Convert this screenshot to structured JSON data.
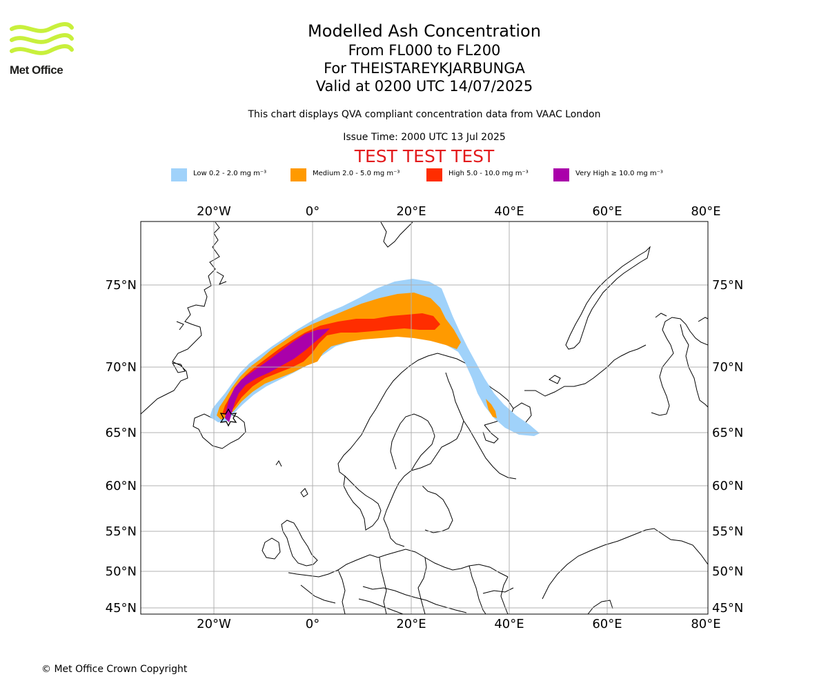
{
  "header": {
    "title": "Modelled Ash Concentration",
    "levels": "From FL000 to FL200",
    "volcano": "For THEISTAREYKJARBUNGA",
    "valid": "Valid at 0200 UTC 14/07/2025",
    "source_note": "This chart displays QVA compliant concentration data from VAAC London",
    "issue_time": "Issue Time: 2000 UTC 13 Jul 2025",
    "test_banner": "TEST TEST TEST"
  },
  "logo": {
    "text": "Met Office",
    "color": "#c8f03c"
  },
  "legend": [
    {
      "label": "Low 0.2 - 2.0 mg m⁻³",
      "color": "#a0d2fa"
    },
    {
      "label": "Medium 2.0 - 5.0 mg m⁻³",
      "color": "#ff9a00"
    },
    {
      "label": "High 5.0 - 10.0 mg m⁻³",
      "color": "#ff2d00"
    },
    {
      "label": "Very High ≥ 10.0 mg m⁻³",
      "color": "#aa00aa"
    }
  ],
  "map": {
    "longitude_labels": [
      "20°W",
      "0°",
      "20°E",
      "40°E",
      "60°E",
      "80°E"
    ],
    "latitude_labels": [
      "75°N",
      "70°N",
      "65°N",
      "60°N",
      "55°N",
      "50°N",
      "45°N"
    ],
    "volcano_marker": "volcano-icon"
  },
  "footer": {
    "copyright": "© Met Office Crown Copyright"
  }
}
